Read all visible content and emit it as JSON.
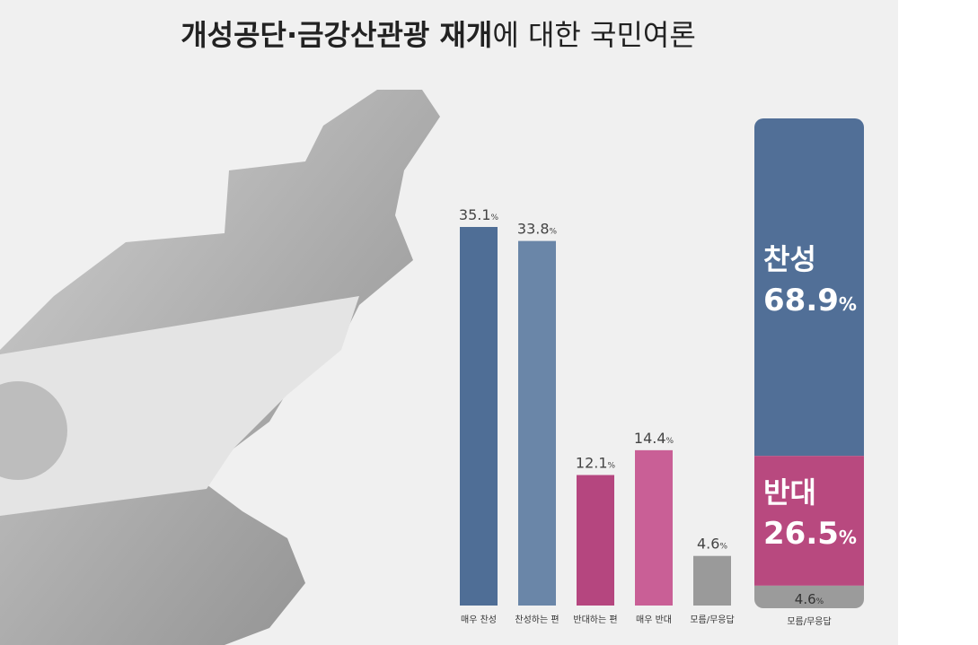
{
  "title": {
    "bold": "개성공단·금강산관광 재개",
    "regular": "에 대한 국민여론"
  },
  "chart_data": [
    {
      "type": "bar",
      "categories": [
        "매우 찬성",
        "찬성하는 편",
        "반대하는 편",
        "매우 반대",
        "모름/무응답"
      ],
      "values": [
        35.1,
        33.8,
        12.1,
        14.4,
        4.6
      ],
      "value_labels": [
        "35.1%",
        "33.8%",
        "12.1%",
        "14.4%",
        "4.6%"
      ],
      "colors": [
        "#4f6e96",
        "#6a86a8",
        "#b5467f",
        "#c95f96",
        "#9a9a9a"
      ]
    },
    {
      "type": "stacked_bar",
      "series": [
        {
          "name": "찬성",
          "color": "#516f97",
          "values": [
            68.9
          ],
          "value_labels": [
            "68.9%"
          ]
        },
        {
          "name": "반대",
          "color": "#b8497f",
          "values": [
            26.5
          ],
          "value_labels": [
            "26.5%"
          ]
        },
        {
          "name": "모름/무응답",
          "color": "#9b9b9b",
          "values": [
            4.6
          ],
          "value_labels": [
            "4.6%"
          ]
        }
      ]
    }
  ]
}
